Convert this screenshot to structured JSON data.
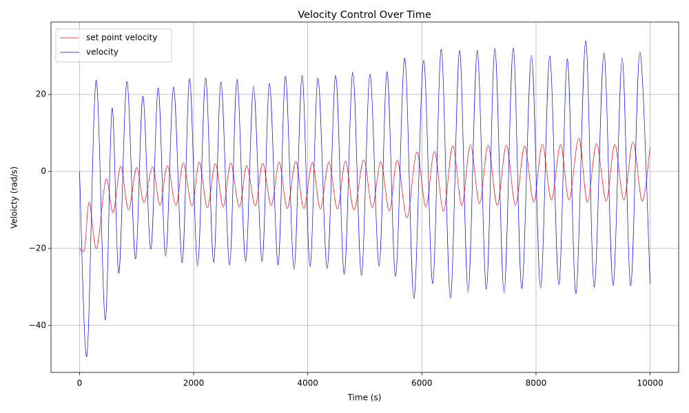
{
  "chart_data": {
    "type": "line",
    "title": "Velocity Control Over Time",
    "x_label": "Time (s)",
    "y_label": "Veloicty (rad/s)",
    "xlim": [
      -500,
      10500
    ],
    "ylim": [
      -52.2,
      38.8
    ],
    "xticks": [
      0,
      2000,
      4000,
      6000,
      8000,
      10000
    ],
    "yticks": [
      {
        "value": -40,
        "label": "−40"
      },
      {
        "value": -20,
        "label": "−20"
      },
      0,
      20
    ],
    "grid": true,
    "legend": "upper left",
    "series": [
      {
        "name": "set point velocity",
        "color": "#ff0000",
        "x": [
          0,
          90,
          170,
          300,
          460,
          590,
          720,
          860,
          1000,
          1130,
          1280,
          1410,
          1540,
          1690,
          1820,
          1970,
          2100,
          2240,
          2380,
          2520,
          2650,
          2800,
          2930,
          3080,
          3210,
          3360,
          3500,
          3640,
          3790,
          3930,
          4080,
          4220,
          4370,
          4520,
          4660,
          4810,
          4980,
          5130,
          5280,
          5430,
          5570,
          5740,
          5910,
          6070,
          6220,
          6380,
          6540,
          6700,
          6850,
          7010,
          7160,
          7320,
          7480,
          7640,
          7800,
          7960,
          8110,
          8270,
          8430,
          8580,
          8750,
          8900,
          9060,
          9230,
          9380,
          9540,
          9700,
          9860,
          10000
        ],
        "values": [
          -20,
          -20,
          -8,
          -20,
          -2.1,
          -10.7,
          1.3,
          -10,
          1,
          -8.1,
          1.2,
          -8.8,
          1.5,
          -8.8,
          2.2,
          -9,
          2.4,
          -9.4,
          2,
          -9.2,
          2.2,
          -9.2,
          1.5,
          -9,
          2.1,
          -8.8,
          2.4,
          -9.6,
          2.6,
          -9.6,
          2.3,
          -9.7,
          2.4,
          -9.8,
          2.7,
          -10,
          3,
          -9.4,
          2.5,
          -10.3,
          2.9,
          -12,
          5,
          -9.2,
          5.2,
          -10.3,
          6.6,
          -8.9,
          6.9,
          -8.4,
          6.8,
          -8.8,
          6.9,
          -8.8,
          6.6,
          -8,
          7.1,
          -7.4,
          7,
          -7.4,
          8.7,
          -8,
          7.2,
          -7.7,
          7,
          -7.4,
          7.7,
          -7.7,
          6.3
        ]
      },
      {
        "name": "velocity",
        "color": "#0000ff",
        "x": [
          0,
          130,
          290,
          450,
          570,
          690,
          830,
          980,
          1110,
          1250,
          1380,
          1510,
          1650,
          1800,
          1930,
          2070,
          2210,
          2350,
          2480,
          2630,
          2760,
          2910,
          3050,
          3200,
          3330,
          3480,
          3610,
          3760,
          3900,
          4040,
          4180,
          4340,
          4490,
          4640,
          4790,
          4940,
          5090,
          5250,
          5390,
          5540,
          5700,
          5860,
          6030,
          6190,
          6340,
          6500,
          6660,
          6810,
          6970,
          7130,
          7280,
          7440,
          7600,
          7750,
          7920,
          8080,
          8240,
          8400,
          8550,
          8700,
          8870,
          9020,
          9190,
          9350,
          9510,
          9660,
          9820,
          10000
        ],
        "values": [
          0,
          -47.9,
          23.6,
          -38.5,
          16.4,
          -26.4,
          23.3,
          -22.7,
          19.5,
          -20.2,
          21.7,
          -22,
          21.9,
          -23.7,
          24.1,
          -24.6,
          24.3,
          -23.6,
          23.3,
          -24.3,
          23.9,
          -23.3,
          22.1,
          -23.4,
          22.9,
          -24.3,
          24.7,
          -25.4,
          24.9,
          -24.7,
          24.3,
          -25.2,
          24.9,
          -26.7,
          25.8,
          -27,
          25.2,
          -24.6,
          25.9,
          -27.2,
          29.4,
          -33,
          28.8,
          -29.1,
          31.7,
          -32.9,
          31.4,
          -31.4,
          31.4,
          -30.6,
          31.9,
          -31.6,
          32,
          -30.4,
          30.2,
          -30.3,
          30,
          -29.4,
          29.2,
          -31.7,
          33.9,
          -30,
          30.7,
          -29.6,
          29.5,
          -29.7,
          31,
          -29.2
        ]
      }
    ]
  }
}
